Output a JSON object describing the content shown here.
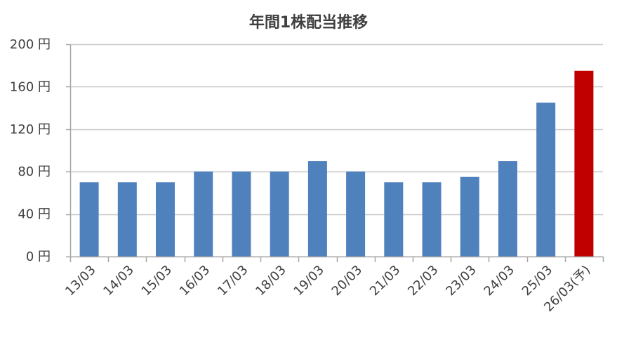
{
  "chart_data": {
    "type": "bar",
    "title": "年間1株配当推移",
    "categories": [
      "13/03",
      "14/03",
      "15/03",
      "16/03",
      "17/03",
      "18/03",
      "19/03",
      "20/03",
      "21/03",
      "22/03",
      "23/03",
      "24/03",
      "25/03",
      "26/03(予)"
    ],
    "values": [
      70,
      70,
      70,
      80,
      80,
      80,
      90,
      80,
      70,
      70,
      75,
      90,
      145,
      175
    ],
    "y_tick_labels": [
      "0 円",
      "40 円",
      "80 円",
      "120 円",
      "160 円",
      "200 円"
    ],
    "y_ticks": [
      0,
      40,
      80,
      120,
      160,
      200
    ],
    "ylim": [
      0,
      200
    ],
    "grid": true,
    "colors": {
      "bar": "#4F81BD",
      "forecast": "#C00000",
      "grid": "#C8C8C8",
      "axis": "#A6A6A6"
    },
    "highlight_index": 13
  }
}
